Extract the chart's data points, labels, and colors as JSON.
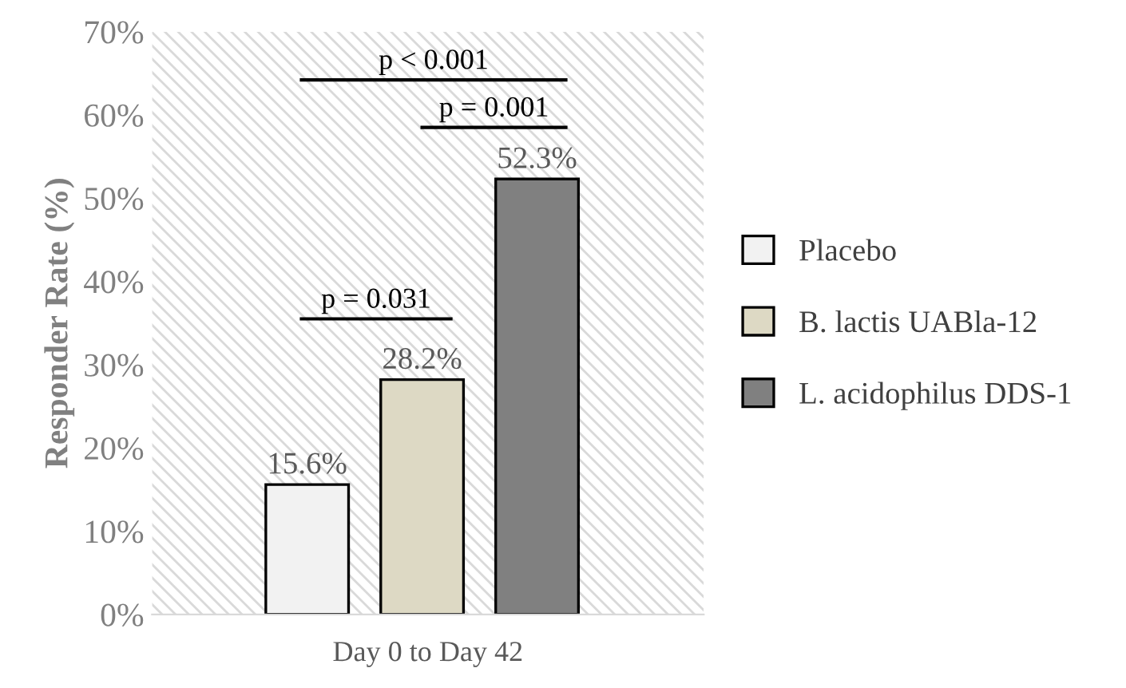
{
  "chart_data": {
    "type": "bar",
    "ylabel": "Responder Rate (%)",
    "xlabel": "Day 0 to Day 42",
    "categories": [
      null,
      null,
      null
    ],
    "series": [
      {
        "name": "Placebo",
        "color": "#f2f2f2",
        "values": [
          15.6,
          null,
          null
        ],
        "value_labels": [
          "15.6%",
          null,
          null
        ]
      },
      {
        "name": "B. lactis UABla-12",
        "color": "#ddd9c4",
        "values": [
          null,
          28.2,
          null
        ],
        "value_labels": [
          null,
          "28.2%",
          null
        ]
      },
      {
        "name": "L. acidophilus DDS-1",
        "color": "#808080",
        "values": [
          null,
          null,
          52.3
        ],
        "value_labels": [
          null,
          null,
          "52.3%"
        ]
      }
    ],
    "ylim": [
      0,
      70
    ],
    "yticks": [
      {
        "value": 0,
        "label": "0%"
      },
      {
        "value": 10,
        "label": "10%"
      },
      {
        "value": 20,
        "label": "20%"
      },
      {
        "value": 30,
        "label": "30%"
      },
      {
        "value": 40,
        "label": "40%"
      },
      {
        "value": 50,
        "label": "50%"
      },
      {
        "value": 60,
        "label": "60%"
      },
      {
        "value": 70,
        "label": "70%"
      }
    ],
    "grid": false,
    "legend": "right",
    "annotations": [
      "p < 0.001",
      "p = 0.001",
      "p = 0.031"
    ]
  }
}
